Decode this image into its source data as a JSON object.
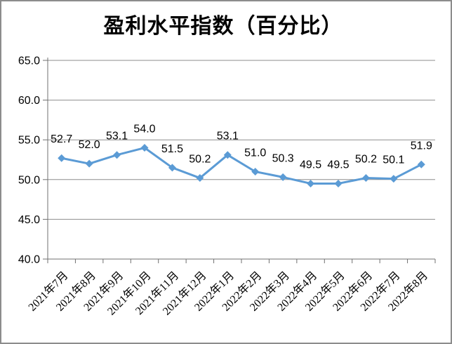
{
  "chart_data": {
    "type": "line",
    "title": "盈利水平指数（百分比）",
    "categories": [
      "2021年7月",
      "2021年8月",
      "2021年9月",
      "2021年10月",
      "2021年11月",
      "2021年12月",
      "2022年1月",
      "2022年2月",
      "2022年3月",
      "2022年4月",
      "2022年5月",
      "2022年6月",
      "2022年7月",
      "2022年8月"
    ],
    "values": [
      52.7,
      52.0,
      53.1,
      54.0,
      51.5,
      50.2,
      53.1,
      51.0,
      50.3,
      49.5,
      49.5,
      50.2,
      50.1,
      51.9
    ],
    "data_labels": [
      "52.7",
      "52.0",
      "53.1",
      "54.0",
      "51.5",
      "50.2",
      "53.1",
      "51.0",
      "50.3",
      "49.5",
      "49.5",
      "50.2",
      "50.1",
      "51.9"
    ],
    "xlabel": "",
    "ylabel": "",
    "ylim": [
      40.0,
      65.0
    ],
    "ytick_step": 5.0,
    "ytick_labels": [
      "40.0",
      "45.0",
      "50.0",
      "55.0",
      "60.0",
      "65.0"
    ],
    "grid": true,
    "legend_position": "none",
    "x_label_rotation_deg": 45,
    "marker": "diamond",
    "colors": {
      "series": "#5b9bd5",
      "gridline": "#8e8e8e",
      "axis": "#707070",
      "text": "#000000",
      "frame_border": "#8c8c8c",
      "background": "#ffffff"
    }
  }
}
